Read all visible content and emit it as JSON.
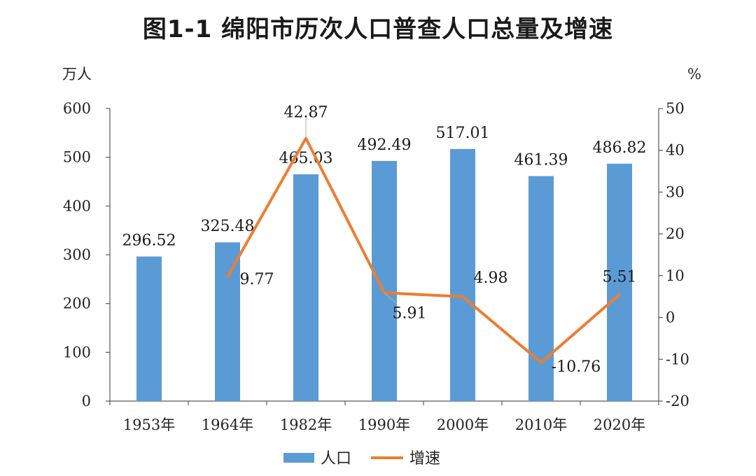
{
  "colors": {
    "bar": "#5b9bd5",
    "line": "#ed7d31",
    "axis": "#595959"
  },
  "chart_data": {
    "type": "bar",
    "title": "图1-1  绵阳市历次人口普查人口总量及增速",
    "y_left_unit": "万人",
    "y_right_unit": "%",
    "categories": [
      "1953年",
      "1964年",
      "1982年",
      "1990年",
      "2000年",
      "2010年",
      "2020年"
    ],
    "ylim_left": [
      0,
      600
    ],
    "yticks_left": [
      "0",
      "100",
      "200",
      "300",
      "400",
      "500",
      "600"
    ],
    "ylim_right": [
      -20,
      50
    ],
    "yticks_right": [
      "-20",
      "-10",
      "0",
      "10",
      "20",
      "30",
      "40",
      "50"
    ],
    "series": [
      {
        "name": "人口",
        "type": "bar",
        "axis": "left",
        "values": [
          296.52,
          325.48,
          465.03,
          492.49,
          517.01,
          461.39,
          486.82
        ],
        "labels": [
          "296.52",
          "325.48",
          "465.03",
          "492.49",
          "517.01",
          "461.39",
          "486.82"
        ]
      },
      {
        "name": "增速",
        "type": "line",
        "axis": "right",
        "values": [
          null,
          9.77,
          42.87,
          5.91,
          4.98,
          -10.76,
          5.51
        ],
        "labels": [
          "",
          "9.77",
          "42.87",
          "5.91",
          "4.98",
          "-10.76",
          "5.51"
        ]
      }
    ],
    "grid": false,
    "legend": "bottom"
  }
}
